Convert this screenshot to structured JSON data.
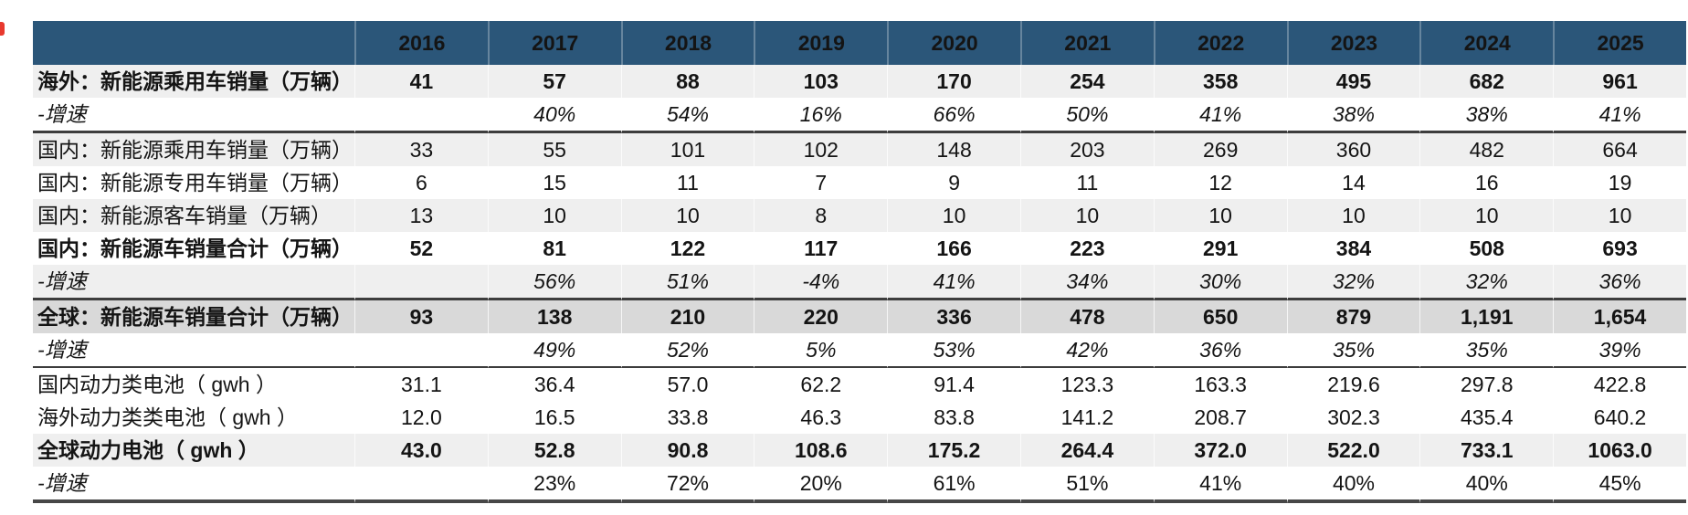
{
  "colors": {
    "header_bg": "#2b5679",
    "header_text": "#ffffff",
    "row_light": "#efefef",
    "row_dark": "#d9d9d9",
    "border_dark": "#3d3d3d",
    "red_mark": "#e8392e"
  },
  "chart_data": {
    "type": "table",
    "title": "",
    "label_column_header": "",
    "columns": [
      "2016",
      "2017",
      "2018",
      "2019",
      "2020",
      "2021",
      "2022",
      "2023",
      "2024",
      "2025"
    ],
    "rows": [
      {
        "label": "海外：新能源乘用车销量（万辆）",
        "label_bold": true,
        "label_italic": false,
        "values_bold": true,
        "values_italic": false,
        "bg": "light",
        "border_after": "none",
        "values": [
          "41",
          "57",
          "88",
          "103",
          "170",
          "254",
          "358",
          "495",
          "682",
          "961"
        ]
      },
      {
        "label": "-增速",
        "label_bold": false,
        "label_italic": true,
        "values_bold": false,
        "values_italic": true,
        "bg": "white",
        "border_after": "thick",
        "values": [
          "",
          "40%",
          "54%",
          "16%",
          "66%",
          "50%",
          "41%",
          "38%",
          "38%",
          "41%"
        ]
      },
      {
        "label": "国内：新能源乘用车销量（万辆）",
        "label_bold": false,
        "label_italic": false,
        "values_bold": false,
        "values_italic": false,
        "bg": "light",
        "border_after": "none",
        "values": [
          "33",
          "55",
          "101",
          "102",
          "148",
          "203",
          "269",
          "360",
          "482",
          "664"
        ]
      },
      {
        "label": "国内：新能源专用车销量（万辆）",
        "label_bold": false,
        "label_italic": false,
        "values_bold": false,
        "values_italic": false,
        "bg": "white",
        "border_after": "none",
        "values": [
          "6",
          "15",
          "11",
          "7",
          "9",
          "11",
          "12",
          "14",
          "16",
          "19"
        ]
      },
      {
        "label": "国内：新能源客车销量（万辆）",
        "label_bold": false,
        "label_italic": false,
        "values_bold": false,
        "values_italic": false,
        "bg": "light",
        "border_after": "none",
        "values": [
          "13",
          "10",
          "10",
          "8",
          "10",
          "10",
          "10",
          "10",
          "10",
          "10"
        ]
      },
      {
        "label": "国内：新能源车销量合计（万辆）",
        "label_bold": true,
        "label_italic": false,
        "values_bold": true,
        "values_italic": false,
        "bg": "white",
        "border_after": "none",
        "values": [
          "52",
          "81",
          "122",
          "117",
          "166",
          "223",
          "291",
          "384",
          "508",
          "693"
        ]
      },
      {
        "label": "-增速",
        "label_bold": false,
        "label_italic": true,
        "values_bold": false,
        "values_italic": true,
        "bg": "light",
        "border_after": "thick",
        "values": [
          "",
          "56%",
          "51%",
          "-4%",
          "41%",
          "34%",
          "30%",
          "32%",
          "32%",
          "36%"
        ]
      },
      {
        "label": "全球：新能源车销量合计（万辆）",
        "label_bold": true,
        "label_italic": false,
        "values_bold": true,
        "values_italic": false,
        "bg": "dark",
        "border_after": "none",
        "values": [
          "93",
          "138",
          "210",
          "220",
          "336",
          "478",
          "650",
          "879",
          "1,191",
          "1,654"
        ]
      },
      {
        "label": "-增速",
        "label_bold": false,
        "label_italic": true,
        "values_bold": false,
        "values_italic": true,
        "bg": "white",
        "border_after": "thin",
        "values": [
          "",
          "49%",
          "52%",
          "5%",
          "53%",
          "42%",
          "36%",
          "35%",
          "35%",
          "39%"
        ]
      },
      {
        "label": "国内动力类电池（ gwh ）",
        "label_bold": false,
        "label_italic": false,
        "values_bold": false,
        "values_italic": false,
        "bg": "white",
        "border_after": "none",
        "values": [
          "31.1",
          "36.4",
          "57.0",
          "62.2",
          "91.4",
          "123.3",
          "163.3",
          "219.6",
          "297.8",
          "422.8"
        ]
      },
      {
        "label": "海外动力类类电池（ gwh ）",
        "label_bold": false,
        "label_italic": false,
        "values_bold": false,
        "values_italic": false,
        "bg": "white",
        "border_after": "none",
        "values": [
          "12.0",
          "16.5",
          "33.8",
          "46.3",
          "83.8",
          "141.2",
          "208.7",
          "302.3",
          "435.4",
          "640.2"
        ]
      },
      {
        "label": "全球动力电池（ gwh ）",
        "label_bold": true,
        "label_italic": false,
        "values_bold": true,
        "values_italic": false,
        "bg": "light",
        "border_after": "none",
        "values": [
          "43.0",
          "52.8",
          "90.8",
          "108.6",
          "175.2",
          "264.4",
          "372.0",
          "522.0",
          "733.1",
          "1063.0"
        ]
      },
      {
        "label": "-增速",
        "label_bold": false,
        "label_italic": true,
        "values_bold": false,
        "values_italic": false,
        "bg": "white",
        "border_after": "bottom",
        "values": [
          "",
          "23%",
          "72%",
          "20%",
          "61%",
          "51%",
          "41%",
          "40%",
          "40%",
          "45%"
        ]
      }
    ]
  }
}
